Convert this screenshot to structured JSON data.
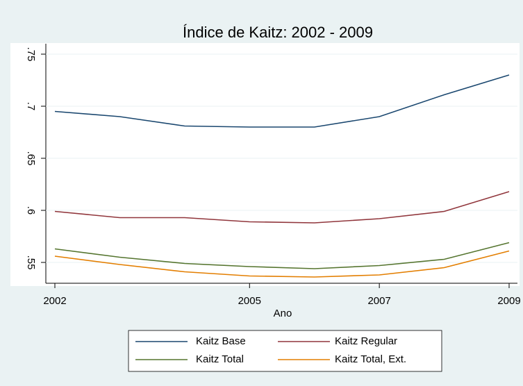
{
  "chart_data": {
    "type": "line",
    "title": "Índice de Kaitz: 2002 - 2009",
    "x_label": "Ano",
    "x": [
      2002,
      2003,
      2004,
      2005,
      2006,
      2007,
      2008,
      2009
    ],
    "xlim": [
      2002,
      2009
    ],
    "xticks": [
      2002,
      2005,
      2007,
      2009
    ],
    "ylim": [
      0.53,
      0.76
    ],
    "yticks": [
      {
        "value": 0.55,
        "label": ".55"
      },
      {
        "value": 0.6,
        "label": ".6"
      },
      {
        "value": 0.65,
        "label": ".65"
      },
      {
        "value": 0.7,
        "label": ".7"
      },
      {
        "value": 0.75,
        "label": ".75"
      }
    ],
    "grid": true,
    "series": [
      {
        "name": "Kaitz Base",
        "color": "#1a476f",
        "values": [
          0.695,
          0.69,
          0.681,
          0.68,
          0.68,
          0.69,
          0.711,
          0.73
        ]
      },
      {
        "name": "Kaitz Regular",
        "color": "#90353b",
        "values": [
          0.599,
          0.593,
          0.593,
          0.589,
          0.588,
          0.592,
          0.599,
          0.618
        ]
      },
      {
        "name": "Kaitz Total",
        "color": "#55752f",
        "values": [
          0.563,
          0.555,
          0.549,
          0.546,
          0.544,
          0.547,
          0.553,
          0.569
        ]
      },
      {
        "name": "Kaitz Total, Ext.",
        "color": "#e37e00",
        "values": [
          0.556,
          0.548,
          0.541,
          0.537,
          0.536,
          0.538,
          0.545,
          0.561
        ]
      }
    ]
  }
}
